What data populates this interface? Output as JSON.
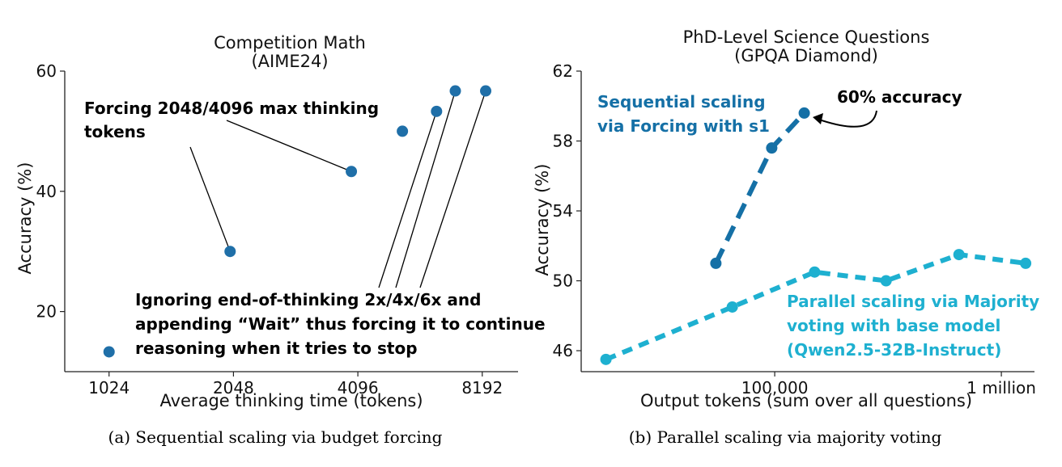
{
  "chart_data": [
    {
      "type": "scatter",
      "title": "Competition Math",
      "subtitle": "(AIME24)",
      "xlabel": "Average thinking time (tokens)",
      "ylabel": "Accuracy (%)",
      "xscale": "log2",
      "xlim": [
        800,
        10000
      ],
      "ylim": [
        10,
        60
      ],
      "xticks": [
        1024,
        2048,
        4096,
        8192
      ],
      "xtick_labels": [
        "1024",
        "2048",
        "4096",
        "8192"
      ],
      "yticks": [
        20,
        40,
        60
      ],
      "ytick_labels": [
        "20",
        "40",
        "60"
      ],
      "color": "#1f6fa8",
      "points": [
        {
          "x": 1024,
          "y": 13.3
        },
        {
          "x": 2010,
          "y": 30.0
        },
        {
          "x": 3950,
          "y": 43.3
        },
        {
          "x": 5250,
          "y": 50.0
        },
        {
          "x": 6350,
          "y": 53.3
        },
        {
          "x": 7050,
          "y": 56.7
        },
        {
          "x": 8350,
          "y": 56.7
        }
      ],
      "annotations": [
        {
          "lines": [
            "Forcing 2048/4096 max thinking",
            "tokens"
          ],
          "targets": [
            1,
            2
          ]
        },
        {
          "lines": [
            "Ignoring end-of-thinking 2x/4x/6x and",
            "appending “Wait” thus forcing it to continue",
            "reasoning when it tries to stop"
          ],
          "targets": [
            4,
            5,
            6
          ]
        }
      ],
      "caption": "(a)  Sequential scaling via budget forcing"
    },
    {
      "type": "line",
      "title": "PhD-Level Science Questions",
      "subtitle": "(GPQA Diamond)",
      "xlabel": "Output tokens (sum over all questions)",
      "ylabel": "Accuracy (%)",
      "xscale": "log10",
      "xlim": [
        14000,
        1400000
      ],
      "ylim": [
        44.8,
        62
      ],
      "xticks": [
        100000,
        1000000
      ],
      "xtick_labels": [
        "100,000",
        "1 million"
      ],
      "yticks": [
        46,
        50,
        54,
        58,
        62
      ],
      "ytick_labels": [
        "46",
        "50",
        "54",
        "58",
        "62"
      ],
      "series": [
        {
          "name": "Sequential scaling via Forcing with s1",
          "label_lines": [
            "Sequential scaling",
            "via Forcing with s1"
          ],
          "color": "#1570a6",
          "x": [
            55000,
            97000,
            135000
          ],
          "y": [
            51.0,
            57.6,
            59.6
          ]
        },
        {
          "name": "Parallel scaling via Majority voting with base model (Qwen2.5-32B-Instruct)",
          "label_lines": [
            "Parallel scaling via Majority",
            "voting with base model",
            "(Qwen2.5-32B-Instruct)"
          ],
          "color": "#1eb0d0",
          "x": [
            18000,
            65000,
            150000,
            310000,
            650000,
            1280000
          ],
          "y": [
            45.5,
            48.5,
            50.5,
            50.0,
            51.5,
            51.0
          ]
        }
      ],
      "annotation": {
        "text": "60% accuracy"
      },
      "caption": "(b)  Parallel scaling via majority voting"
    }
  ]
}
